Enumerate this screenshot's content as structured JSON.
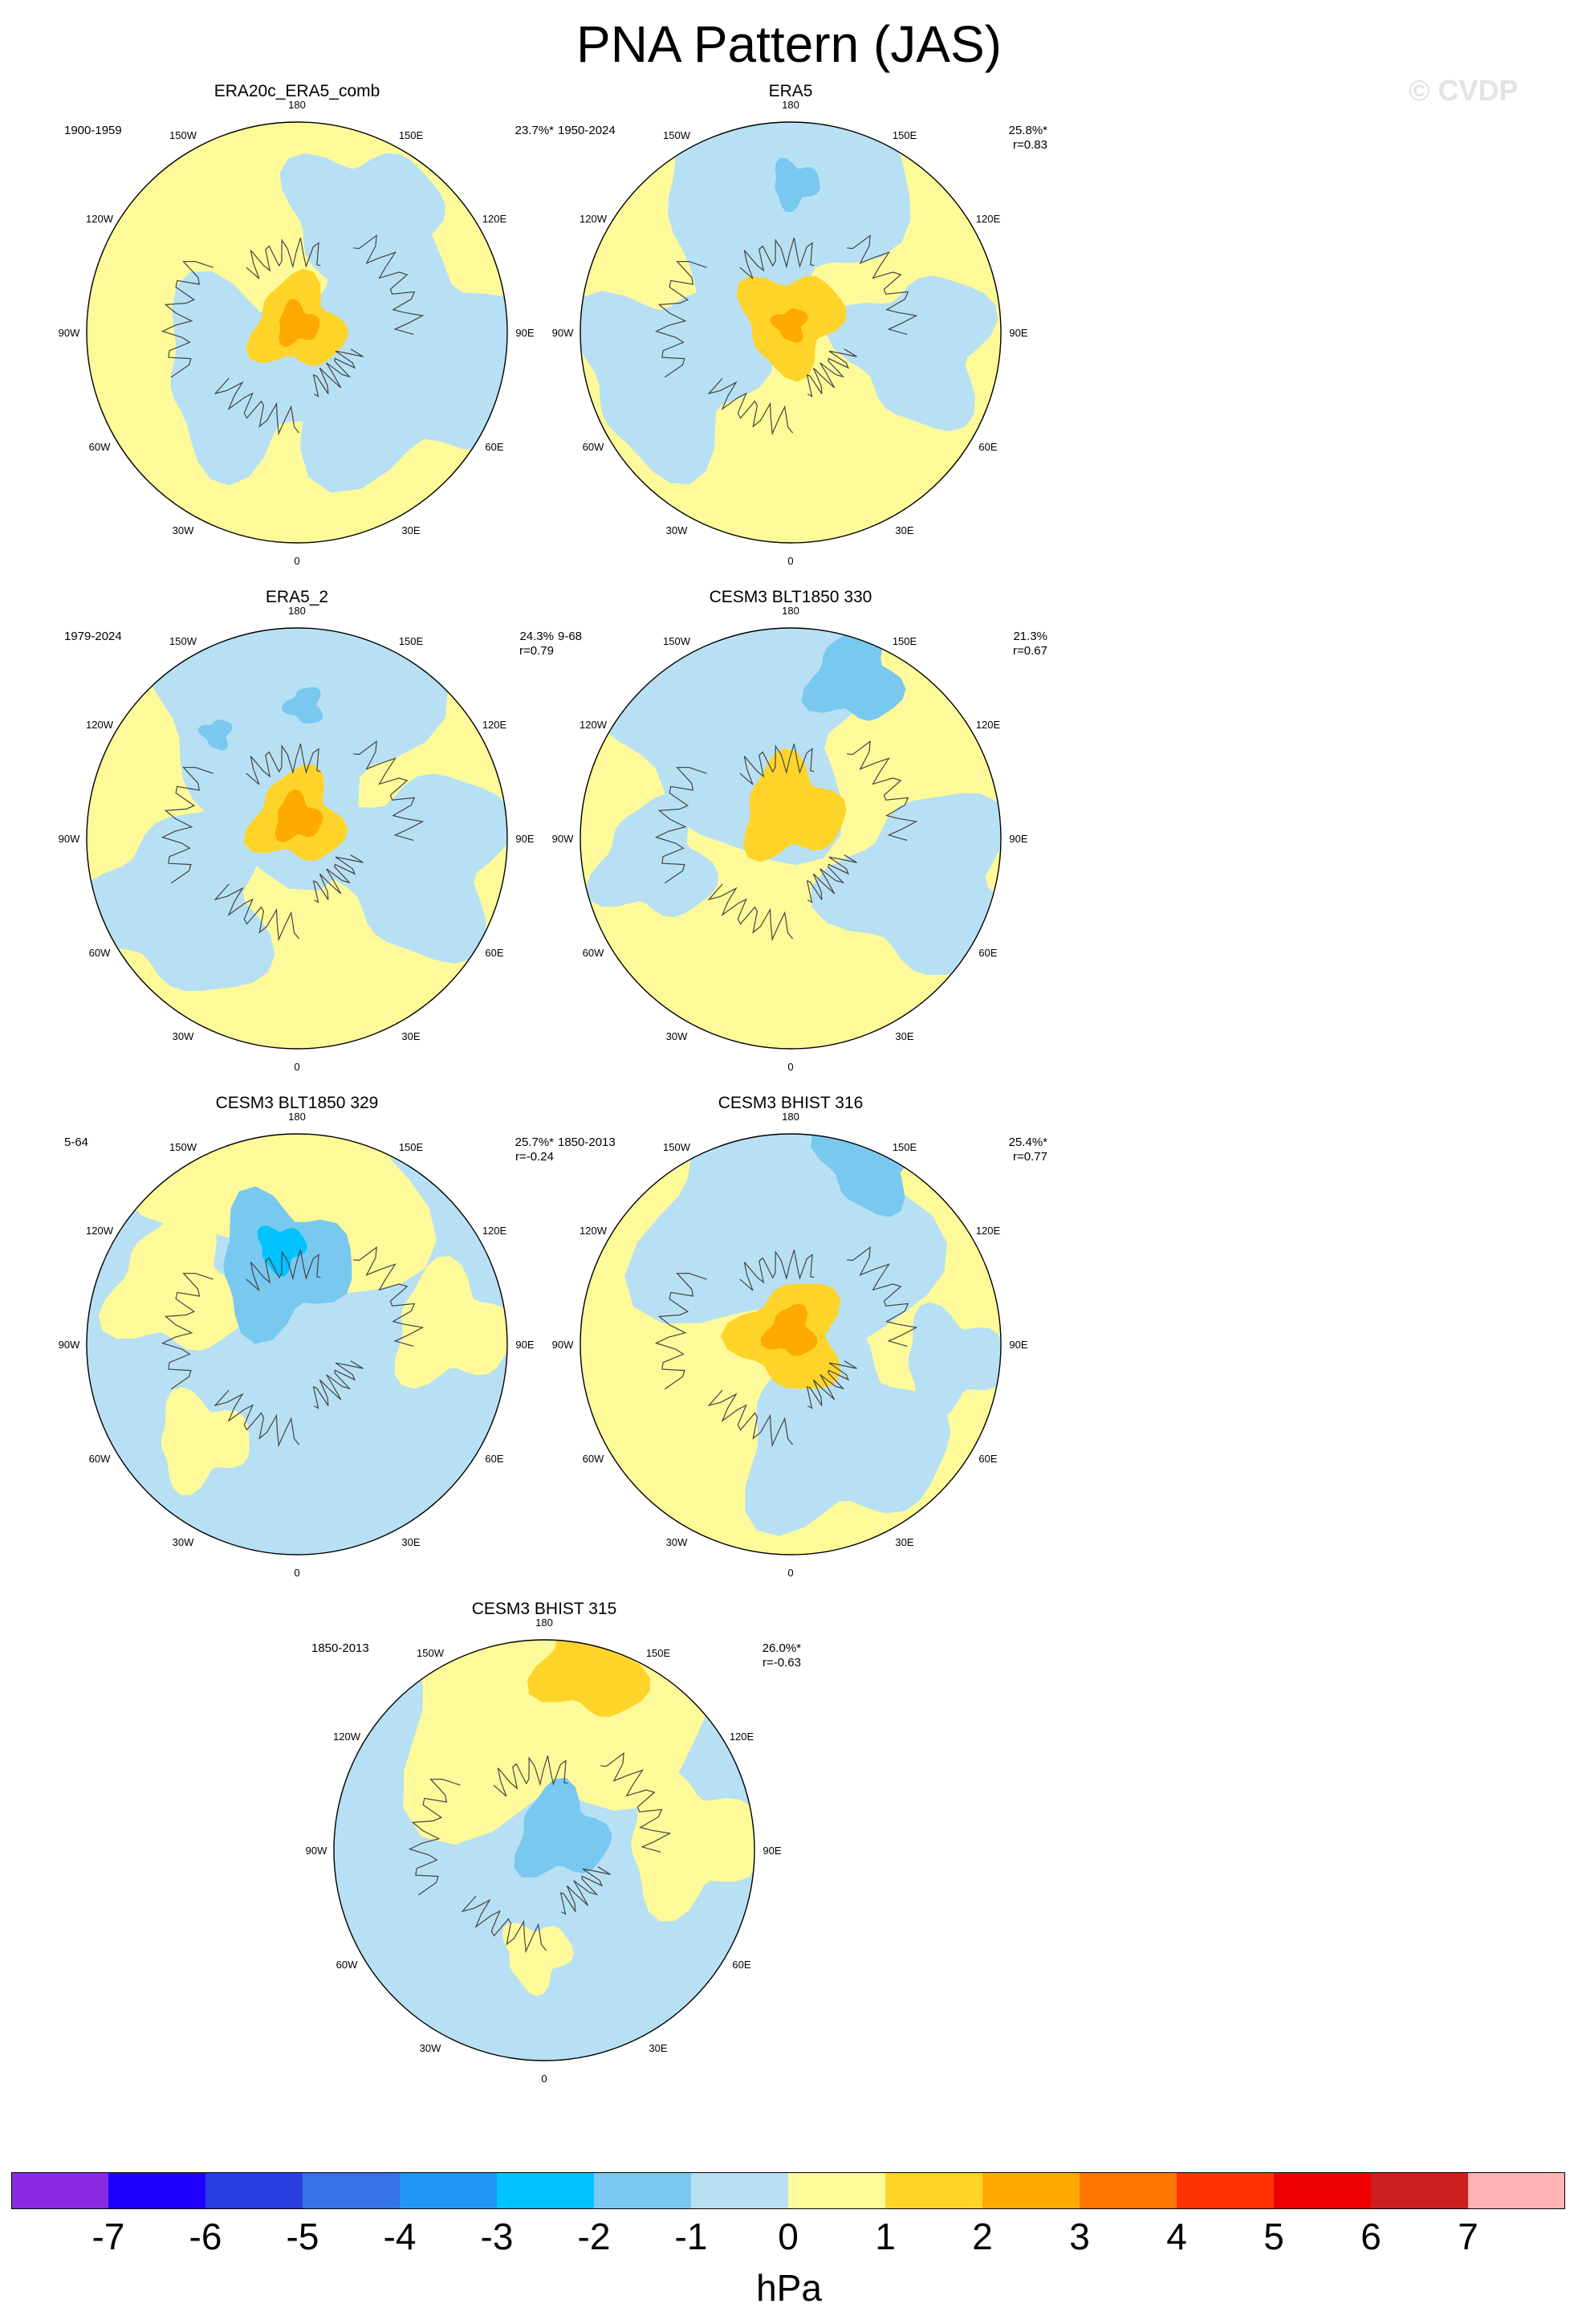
{
  "title": "PNA Pattern (JAS)",
  "watermark": "© CVDP",
  "units": "hPa",
  "colors": {
    "levels": [
      "#8a2be2",
      "#1f00ff",
      "#2a3de0",
      "#3373e6",
      "#2196f3",
      "#00c3ff",
      "#78c8f0",
      "#b7e0f4",
      "#fffa99",
      "#ffd42a",
      "#ffaa00",
      "#ff7700",
      "#ff3300",
      "#ee0000",
      "#cc1f1f",
      "#ffb3b3"
    ],
    "neg1": "#b7e0f4",
    "neg2": "#78c8f0",
    "neg3": "#00c3ff",
    "pos1": "#fffa99",
    "pos2": "#ffd42a",
    "pos3": "#ffaa00",
    "pos4": "#ff7700"
  },
  "lon_labels": [
    "180",
    "150E",
    "120E",
    "90E",
    "60E",
    "30E",
    "0",
    "30W",
    "60W",
    "90W",
    "120W",
    "150W"
  ],
  "chart_data": {
    "type": "heatmap",
    "colorbar": {
      "ticks": [
        "-7",
        "-6",
        "-5",
        "-4",
        "-3",
        "-2",
        "-1",
        "0",
        "1",
        "2",
        "3",
        "4",
        "5",
        "6",
        "7"
      ],
      "colors": [
        "#8a2be2",
        "#1f00ff",
        "#2a3de0",
        "#3373e6",
        "#2196f3",
        "#00c3ff",
        "#78c8f0",
        "#b7e0f4",
        "#fffa99",
        "#ffd42a",
        "#ffaa00",
        "#ff7700",
        "#ff3300",
        "#ee0000",
        "#cc1f1f",
        "#ffb3b3"
      ]
    },
    "panels": [
      {
        "title": "ERA20c_ERA5_comb",
        "period": "1900-1959",
        "variance": "23.7%*",
        "corr": ""
      },
      {
        "title": "ERA5",
        "period": "1950-2024",
        "variance": "25.8%*",
        "corr": "r=0.83"
      },
      {
        "title": "ERA5_2",
        "period": "1979-2024",
        "variance": "24.3%",
        "corr": "r=0.79"
      },
      {
        "title": "CESM3 BLT1850 330",
        "period": "9-68",
        "variance": "21.3%",
        "corr": "r=0.67"
      },
      {
        "title": "CESM3 BLT1850 329",
        "period": "5-64",
        "variance": "25.7%*",
        "corr": "r=-0.24"
      },
      {
        "title": "CESM3 BHIST 316",
        "period": "1850-2013",
        "variance": "25.4%*",
        "corr": "r=0.77"
      },
      {
        "title": "CESM3 BHIST 315",
        "period": "1850-2013",
        "variance": "26.0%*",
        "corr": "r=-0.63"
      }
    ]
  }
}
